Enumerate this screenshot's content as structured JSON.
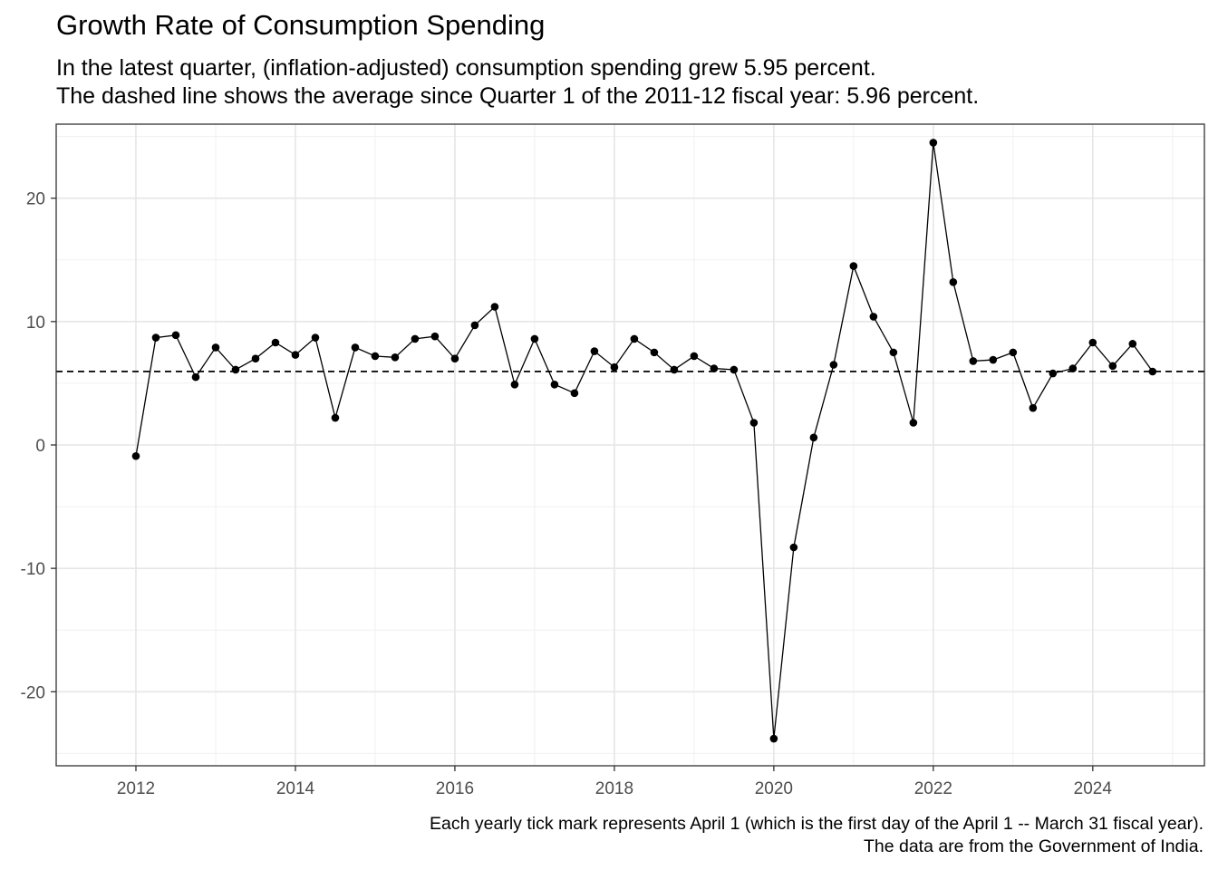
{
  "title": "Growth Rate of Consumption Spending",
  "subtitle_lines": [
    "In the latest quarter, (inflation-adjusted) consumption spending grew 5.95 percent.",
    "The dashed line shows the average since Quarter 1 of the 2011-12 fiscal year: 5.96 percent."
  ],
  "caption_lines": [
    "Each yearly tick mark represents April 1 (which is the first day of the April 1 -- March 31 fiscal year).",
    "The data are from the Government of India."
  ],
  "chart_data": {
    "type": "line",
    "title": "Growth Rate of Consumption Spending",
    "xlabel": "",
    "ylabel": "",
    "xlim": [
      2011.0,
      2025.4
    ],
    "ylim": [
      -26,
      26
    ],
    "x_ticks": [
      2012,
      2014,
      2016,
      2018,
      2020,
      2022,
      2024
    ],
    "y_ticks": [
      -20,
      -10,
      0,
      10,
      20
    ],
    "grid": true,
    "average_line": 5.96,
    "series": [
      {
        "x": [
          2012.0,
          2012.25,
          2012.5,
          2012.75,
          2013.0,
          2013.25,
          2013.5,
          2013.75,
          2014.0,
          2014.25,
          2014.5,
          2014.75,
          2015.0,
          2015.25,
          2015.5,
          2015.75,
          2016.0,
          2016.25,
          2016.5,
          2016.75,
          2017.0,
          2017.25,
          2017.5,
          2017.75,
          2018.0,
          2018.25,
          2018.5,
          2018.75,
          2019.0,
          2019.25,
          2019.5,
          2019.75,
          2020.0,
          2020.25,
          2020.5,
          2020.75,
          2021.0,
          2021.25,
          2021.5,
          2021.75,
          2022.0,
          2022.25,
          2022.5,
          2022.75,
          2023.0,
          2023.25,
          2023.5,
          2023.75,
          2024.0,
          2024.25,
          2024.5,
          2024.75
        ],
        "values": [
          -0.9,
          8.7,
          8.9,
          5.5,
          7.9,
          6.1,
          7.0,
          8.3,
          7.3,
          8.7,
          2.2,
          7.9,
          7.2,
          7.1,
          8.6,
          8.8,
          7.0,
          9.7,
          11.2,
          4.9,
          8.6,
          4.9,
          4.2,
          7.6,
          6.3,
          8.6,
          7.5,
          6.1,
          7.2,
          6.2,
          6.1,
          1.8,
          -23.8,
          -8.3,
          0.6,
          6.5,
          14.5,
          10.4,
          7.5,
          1.8,
          24.5,
          13.2,
          6.8,
          6.9,
          7.5,
          3.0,
          5.8,
          6.2,
          8.3,
          6.4,
          8.2,
          5.95
        ]
      }
    ]
  }
}
